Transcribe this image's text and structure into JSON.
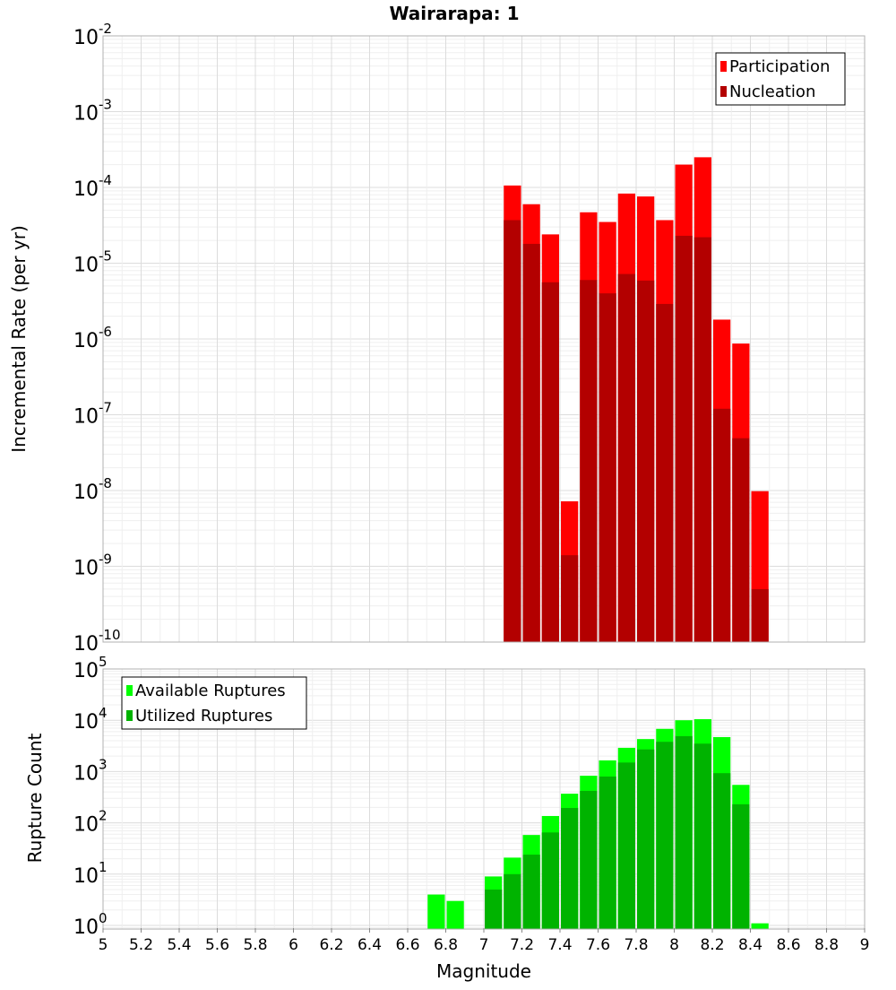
{
  "chart_data": [
    {
      "type": "bar",
      "title": "Wairarapa: 1",
      "xlabel": "Magnitude",
      "ylabel": "Incremental Rate (per yr)",
      "yscale": "log",
      "ylim": [
        1e-10,
        0.01
      ],
      "xlim": [
        5,
        9
      ],
      "grid": true,
      "legend_position": "top-right",
      "x": [
        7.15,
        7.25,
        7.35,
        7.45,
        7.55,
        7.65,
        7.75,
        7.85,
        7.95,
        8.05,
        8.15,
        8.25,
        8.35,
        8.45
      ],
      "series": [
        {
          "name": "Participation",
          "color": "#ff0000",
          "values": [
            0.000106,
            6e-05,
            2.4e-05,
            7.2e-09,
            4.7e-05,
            3.5e-05,
            8.3e-05,
            7.6e-05,
            3.7e-05,
            0.0002,
            0.00025,
            1.8e-06,
            8.7e-07,
            9.8e-09
          ]
        },
        {
          "name": "Nucleation",
          "color": "#b30000",
          "values": [
            3.7e-05,
            1.8e-05,
            5.6e-06,
            1.4e-09,
            6e-06,
            4e-06,
            7.2e-06,
            5.9e-06,
            2.9e-06,
            2.3e-05,
            2.2e-05,
            1.2e-07,
            4.9e-08,
            5e-10
          ]
        }
      ]
    },
    {
      "type": "bar",
      "xlabel": "Magnitude",
      "ylabel": "Rupture Count",
      "yscale": "log",
      "ylim": [
        0.85,
        100000.0
      ],
      "xlim": [
        5,
        9
      ],
      "grid": true,
      "legend_position": "top-left",
      "x": [
        6.75,
        6.85,
        7.05,
        7.15,
        7.25,
        7.35,
        7.45,
        7.55,
        7.65,
        7.75,
        7.85,
        7.95,
        8.05,
        8.15,
        8.25,
        8.35,
        8.45
      ],
      "series": [
        {
          "name": "Available Ruptures",
          "color": "#00ff00",
          "values": [
            4,
            3,
            9,
            21,
            58,
            136,
            370,
            830,
            1650,
            2900,
            4300,
            6800,
            10000,
            10500,
            4700,
            550,
            1.1
          ]
        },
        {
          "name": "Utilized Ruptures",
          "color": "#00b300",
          "values": [
            0,
            0,
            5,
            10,
            24,
            65,
            195,
            420,
            800,
            1500,
            2700,
            3800,
            4900,
            3500,
            930,
            230,
            0
          ]
        }
      ]
    }
  ],
  "x_ticks": [
    "5",
    "5.2",
    "5.4",
    "5.6",
    "5.8",
    "6",
    "6.2",
    "6.4",
    "6.6",
    "6.8",
    "7",
    "7.2",
    "7.4",
    "7.6",
    "7.8",
    "8",
    "8.2",
    "8.4",
    "8.6",
    "8.8",
    "9"
  ],
  "top_y_exponents": [
    "-2",
    "-3",
    "-4",
    "-5",
    "-6",
    "-7",
    "-8",
    "-9",
    "-10"
  ],
  "bottom_y_exponents": [
    "5",
    "4",
    "3",
    "2",
    "1",
    "0"
  ]
}
